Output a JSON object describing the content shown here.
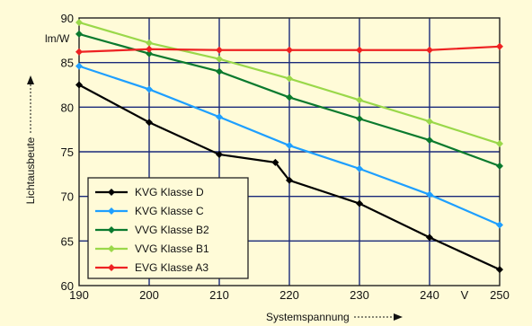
{
  "chart_data": {
    "type": "line",
    "x": [
      190,
      200,
      210,
      218,
      220,
      230,
      240,
      250
    ],
    "xticks": [
      "190",
      "200",
      "210",
      "220",
      "230",
      "240",
      "250"
    ],
    "xtick_values": [
      190,
      200,
      210,
      220,
      230,
      240,
      250
    ],
    "yticks": [
      "60",
      "65",
      "70",
      "75",
      "80",
      "85",
      "90"
    ],
    "ytick_values": [
      60,
      65,
      70,
      75,
      80,
      85,
      90
    ],
    "xlim": [
      190,
      250
    ],
    "ylim": [
      60,
      90
    ],
    "xlabel": "Systemspannung",
    "ylabel": "Lichtausbeute",
    "yunit": "lm/W",
    "xunit": "V",
    "grid": true,
    "legend_position": "bottom-left",
    "series": [
      {
        "name": "KVG Klasse D",
        "color": "#000000",
        "points": [
          [
            190,
            82.5
          ],
          [
            200,
            78.3
          ],
          [
            210,
            74.7
          ],
          [
            218,
            73.8
          ],
          [
            220,
            71.8
          ],
          [
            230,
            69.2
          ],
          [
            240,
            65.4
          ],
          [
            250,
            61.8
          ]
        ]
      },
      {
        "name": "KVG Klasse C",
        "color": "#1e9fff",
        "points": [
          [
            190,
            84.6
          ],
          [
            200,
            82.0
          ],
          [
            210,
            78.9
          ],
          [
            220,
            75.7
          ],
          [
            230,
            73.1
          ],
          [
            240,
            70.2
          ],
          [
            250,
            66.8
          ]
        ]
      },
      {
        "name": "VVG Klasse B2",
        "color": "#0a7a2e",
        "points": [
          [
            190,
            88.2
          ],
          [
            200,
            86.0
          ],
          [
            210,
            84.0
          ],
          [
            220,
            81.1
          ],
          [
            230,
            78.7
          ],
          [
            240,
            76.3
          ],
          [
            250,
            73.4
          ]
        ]
      },
      {
        "name": "VVG Klasse B1",
        "color": "#9ad84a",
        "points": [
          [
            190,
            89.5
          ],
          [
            200,
            87.2
          ],
          [
            210,
            85.4
          ],
          [
            220,
            83.2
          ],
          [
            230,
            80.8
          ],
          [
            240,
            78.4
          ],
          [
            250,
            75.9
          ]
        ]
      },
      {
        "name": "EVG Klasse A3",
        "color": "#ee2222",
        "points": [
          [
            190,
            86.2
          ],
          [
            200,
            86.5
          ],
          [
            210,
            86.4
          ],
          [
            220,
            86.4
          ],
          [
            230,
            86.4
          ],
          [
            240,
            86.4
          ],
          [
            250,
            86.8
          ]
        ]
      }
    ]
  }
}
